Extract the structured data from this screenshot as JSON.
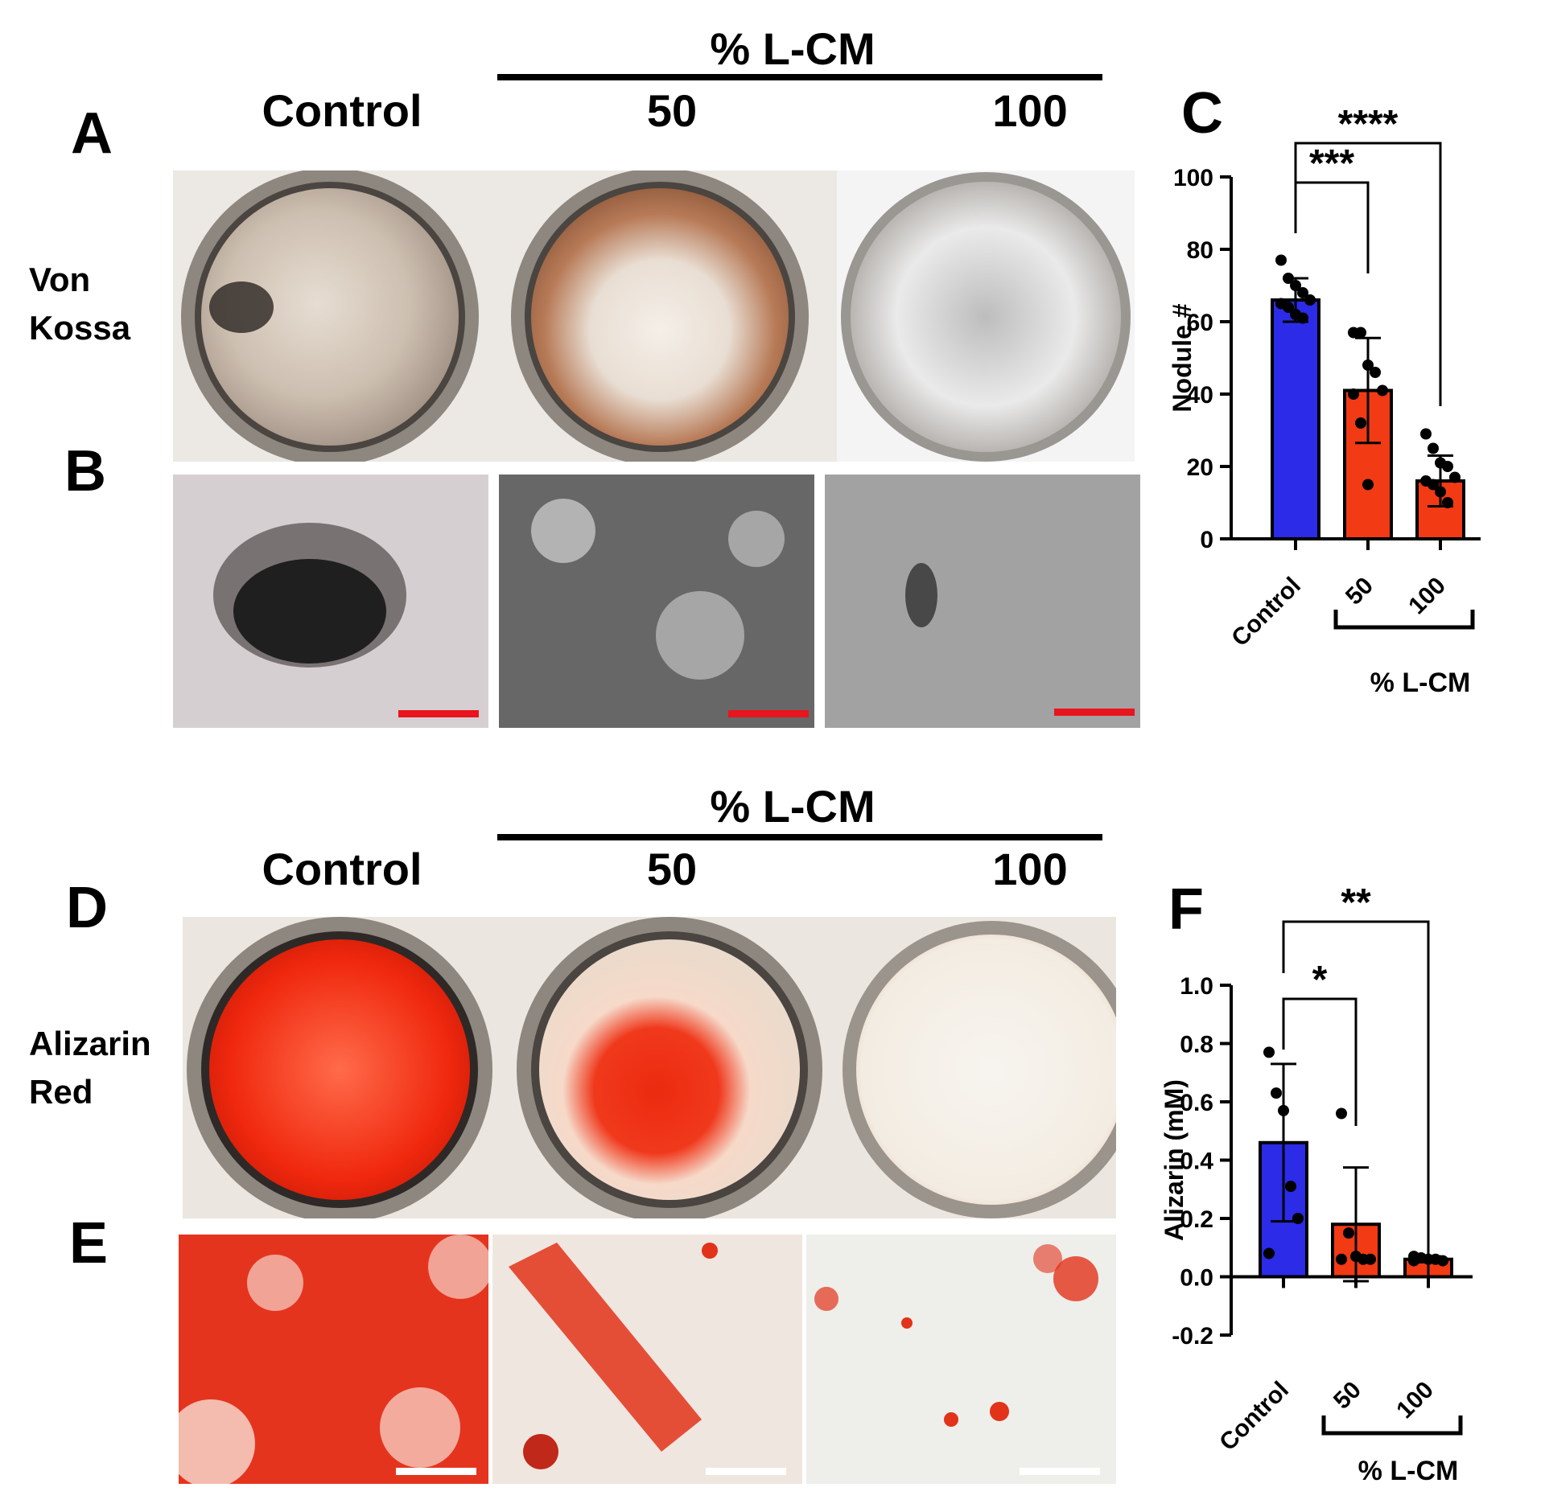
{
  "top": {
    "group_label": "% L-CM",
    "columns": [
      "Control",
      "50",
      "100"
    ],
    "panel_A": "A",
    "panel_B": "B",
    "panel_C": "C",
    "row_label_line1": "Von",
    "row_label_line2": "Kossa"
  },
  "bottom": {
    "group_label": "% L-CM",
    "columns": [
      "Control",
      "50",
      "100"
    ],
    "panel_D": "D",
    "panel_E": "E",
    "panel_F": "F",
    "row_label_line1": "Alizarin",
    "row_label_line2": "Red"
  },
  "colors": {
    "control": "#2b2be8",
    "treated": "#f23a14",
    "scalebar_B": "#e8141e",
    "scalebar_E": "#ffffff"
  },
  "chart_data": [
    {
      "type": "bar",
      "panel": "C",
      "ylabel": "Nodule #",
      "xlabel": "% L-CM",
      "categories": [
        "Control",
        "50",
        "100"
      ],
      "values": [
        66,
        41,
        16
      ],
      "error": [
        6,
        14.5,
        7
      ],
      "points": [
        [
          77,
          72,
          70,
          68,
          66,
          65,
          64,
          62,
          61
        ],
        [
          57,
          57,
          48,
          46,
          41,
          40,
          32,
          15
        ],
        [
          29,
          25,
          21,
          20,
          17,
          16,
          15,
          13,
          10
        ]
      ],
      "ylim": [
        0,
        100
      ],
      "yticks": [
        "0",
        "20",
        "40",
        "60",
        "80",
        "100"
      ],
      "significance": [
        {
          "from": "Control",
          "to": "50",
          "label": "***"
        },
        {
          "from": "Control",
          "to": "100",
          "label": "****"
        }
      ],
      "bracket_label": "% L-CM",
      "bracket_categories": [
        "50",
        "100"
      ]
    },
    {
      "type": "bar",
      "panel": "F",
      "ylabel": "Alizarin (mM)",
      "xlabel": "% L-CM",
      "categories": [
        "Control",
        "50",
        "100"
      ],
      "values": [
        0.46,
        0.18,
        0.06
      ],
      "error": [
        0.27,
        0.195,
        0.01
      ],
      "points": [
        [
          0.77,
          0.63,
          0.57,
          0.31,
          0.2,
          0.08
        ],
        [
          0.56,
          0.15,
          0.07,
          0.06,
          0.06,
          0.06
        ],
        [
          0.07,
          0.065,
          0.06,
          0.06,
          0.055,
          0.055
        ]
      ],
      "ylim": [
        -0.2,
        1.0
      ],
      "yticks": [
        "-0.2",
        "0.0",
        "0.2",
        "0.4",
        "0.6",
        "0.8",
        "1.0"
      ],
      "significance": [
        {
          "from": "Control",
          "to": "50",
          "label": "*"
        },
        {
          "from": "Control",
          "to": "100",
          "label": "**"
        }
      ],
      "bracket_label": "% L-CM",
      "bracket_categories": [
        "50",
        "100"
      ]
    }
  ]
}
